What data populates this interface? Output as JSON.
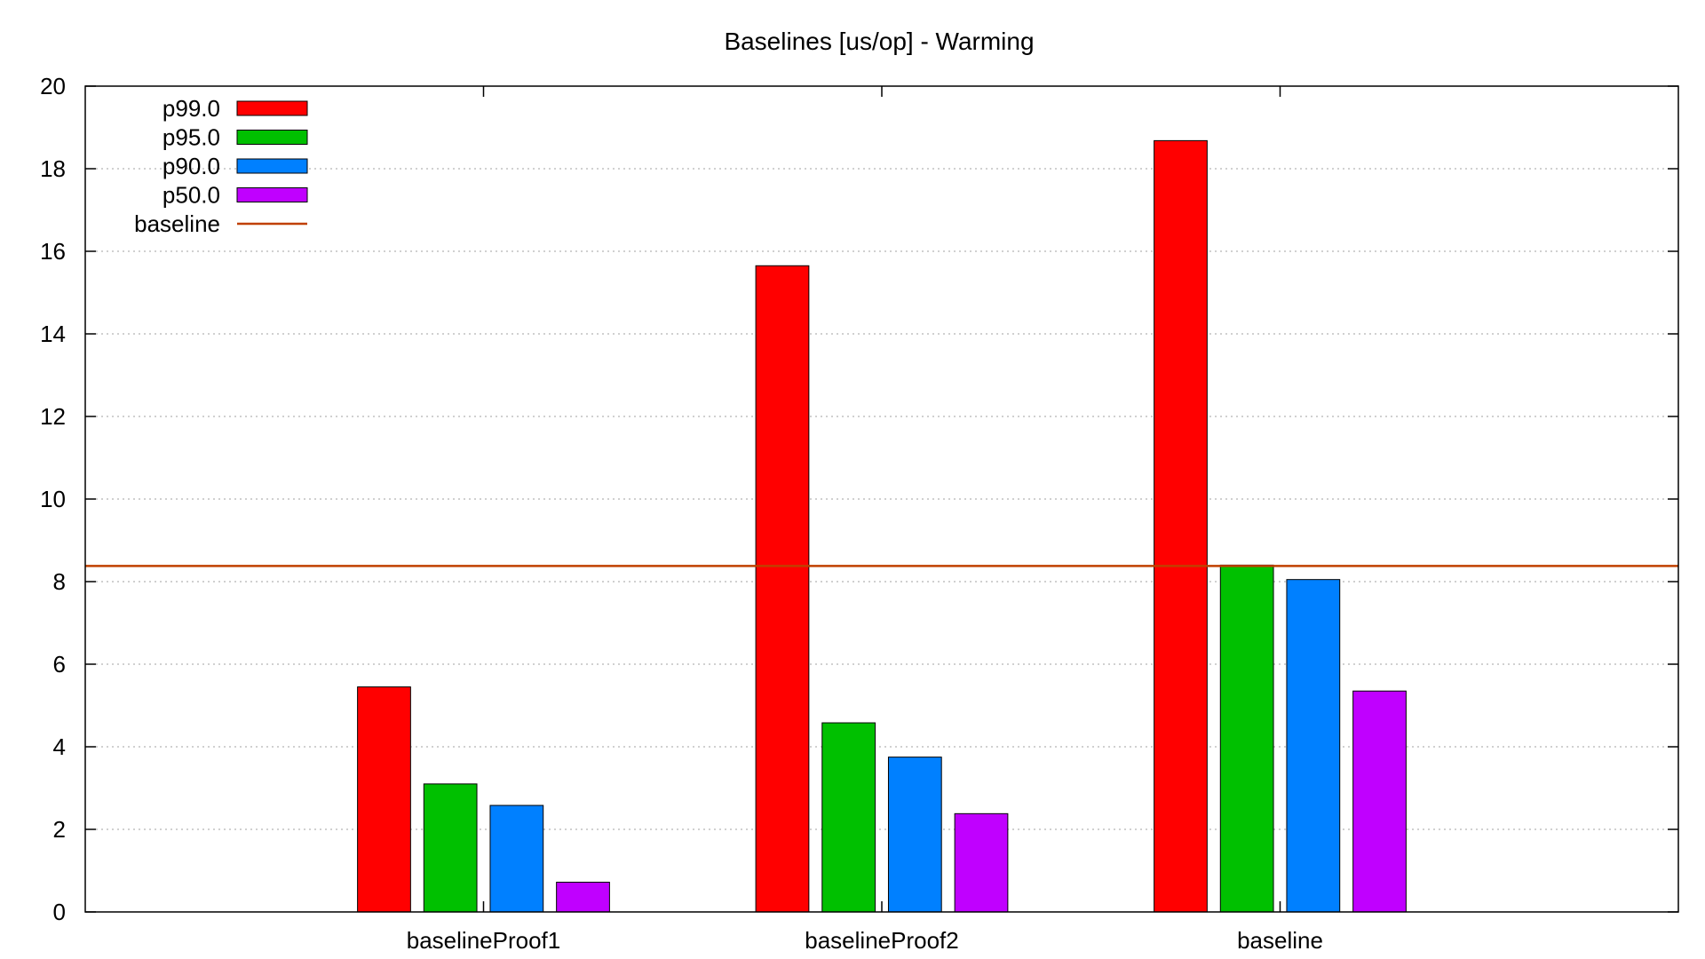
{
  "chart_data": {
    "type": "bar",
    "title": "Baselines [us/op] - Warming",
    "xlabel": "",
    "ylabel": "",
    "ylim": [
      0,
      20
    ],
    "yticks": [
      0,
      2,
      4,
      6,
      8,
      10,
      12,
      14,
      16,
      18,
      20
    ],
    "categories": [
      "baselineProof1",
      "baselineProof2",
      "baseline"
    ],
    "series": [
      {
        "name": "p99.0",
        "color": "#ff0000",
        "values": [
          5.45,
          15.65,
          18.68
        ]
      },
      {
        "name": "p95.0",
        "color": "#00c000",
        "values": [
          3.1,
          4.58,
          8.4
        ]
      },
      {
        "name": "p90.0",
        "color": "#0080ff",
        "values": [
          2.58,
          3.75,
          8.05
        ]
      },
      {
        "name": "p50.0",
        "color": "#c000ff",
        "values": [
          0.72,
          2.38,
          5.35
        ]
      }
    ],
    "reference_line": {
      "name": "baseline",
      "color": "#c04000",
      "value": 8.38
    },
    "grid": true,
    "grid_style": "dotted horizontal",
    "legend_position": "top-left"
  }
}
